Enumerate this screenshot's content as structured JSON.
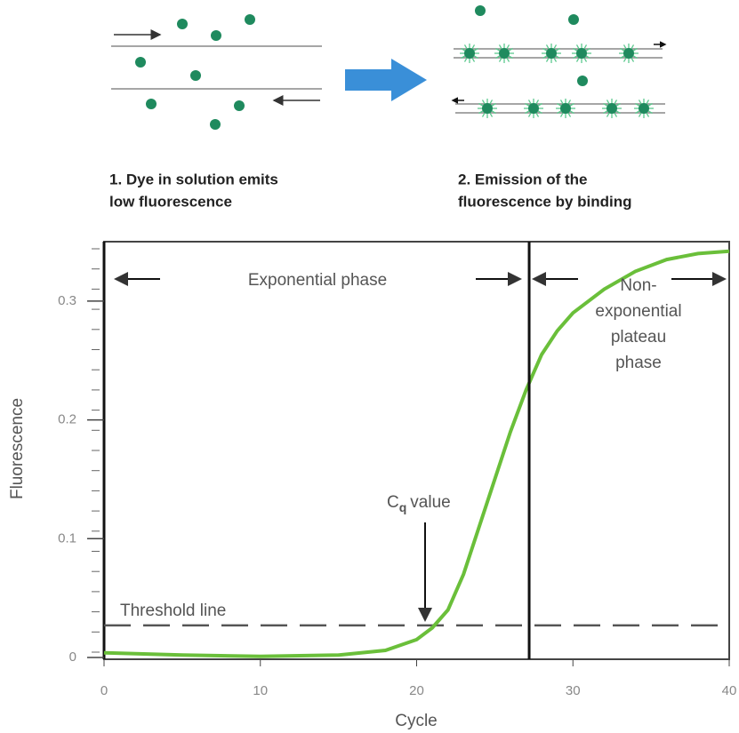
{
  "diagram": {
    "left_caption": [
      "1. Dye in solution emits",
      "low fluorescence"
    ],
    "right_caption": [
      "2. Emission of the",
      "fluorescence by binding"
    ]
  },
  "chart_data": {
    "type": "line",
    "x": [
      0,
      5,
      10,
      15,
      18,
      20,
      21,
      22,
      23,
      24,
      25,
      26,
      27,
      28,
      29,
      30,
      32,
      34,
      36,
      38,
      40
    ],
    "values": [
      0.004,
      0.002,
      0.001,
      0.002,
      0.006,
      0.015,
      0.025,
      0.04,
      0.07,
      0.11,
      0.15,
      0.19,
      0.225,
      0.255,
      0.275,
      0.29,
      0.31,
      0.325,
      0.335,
      0.34,
      0.342
    ],
    "color": "#6abf3a",
    "xlim": [
      0,
      40
    ],
    "ylim": [
      0,
      0.35
    ],
    "xticks": [
      0,
      10,
      20,
      30,
      40
    ],
    "yticks": [
      0,
      0.1,
      0.2,
      0.3
    ],
    "x_label": "Cycle",
    "y_label": "Fluorescence",
    "threshold": 0.027,
    "threshold_label": "Threshold line",
    "phase_boundary": 27.2,
    "exponential_label": "Exponential phase",
    "plateau_label": [
      "Non-",
      "exponential",
      "plateau",
      "phase"
    ],
    "cq_label": {
      "main": "C",
      "sub": "q",
      "rest": "value"
    }
  }
}
